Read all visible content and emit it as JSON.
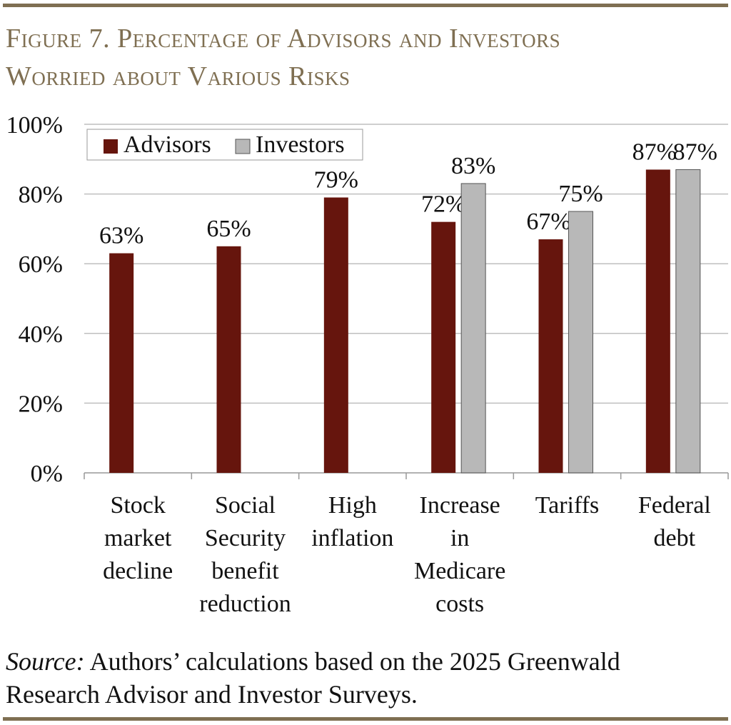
{
  "title_lines": [
    "Figure 7. Percentage of Advisors and Investors",
    "Worried about Various Risks"
  ],
  "source": {
    "label": "Source:",
    "text": " Authors’ calculations based on the 2025 Greenwald",
    "text2": "Research Advisor and Investor Surveys."
  },
  "colors": {
    "accent": "#7f6f52",
    "advisors": "#66150d",
    "investors": "#b8b8b8",
    "grid": "#bfbfbf"
  },
  "chart_data": {
    "type": "bar",
    "categories": [
      [
        "Stock",
        "market",
        "decline"
      ],
      [
        "Social",
        "Security",
        "benefit",
        "reduction"
      ],
      [
        "High",
        "inflation"
      ],
      [
        "Increase",
        "in",
        "Medicare",
        "costs"
      ],
      [
        "Tariffs"
      ],
      [
        "Federal",
        "debt"
      ]
    ],
    "series": [
      {
        "name": "Advisors",
        "values": [
          63,
          65,
          79,
          72,
          67,
          87
        ],
        "labels": [
          "63%",
          "65%",
          "79%",
          "72%",
          "67%",
          "87%"
        ]
      },
      {
        "name": "Investors",
        "values": [
          null,
          null,
          null,
          83,
          75,
          87
        ],
        "labels": [
          null,
          null,
          null,
          "83%",
          "75%",
          "87%"
        ]
      }
    ],
    "ylim": [
      0,
      100
    ],
    "yticks": [
      "0%",
      "20%",
      "40%",
      "60%",
      "80%",
      "100%"
    ],
    "grid": true,
    "legend": "top-left"
  }
}
